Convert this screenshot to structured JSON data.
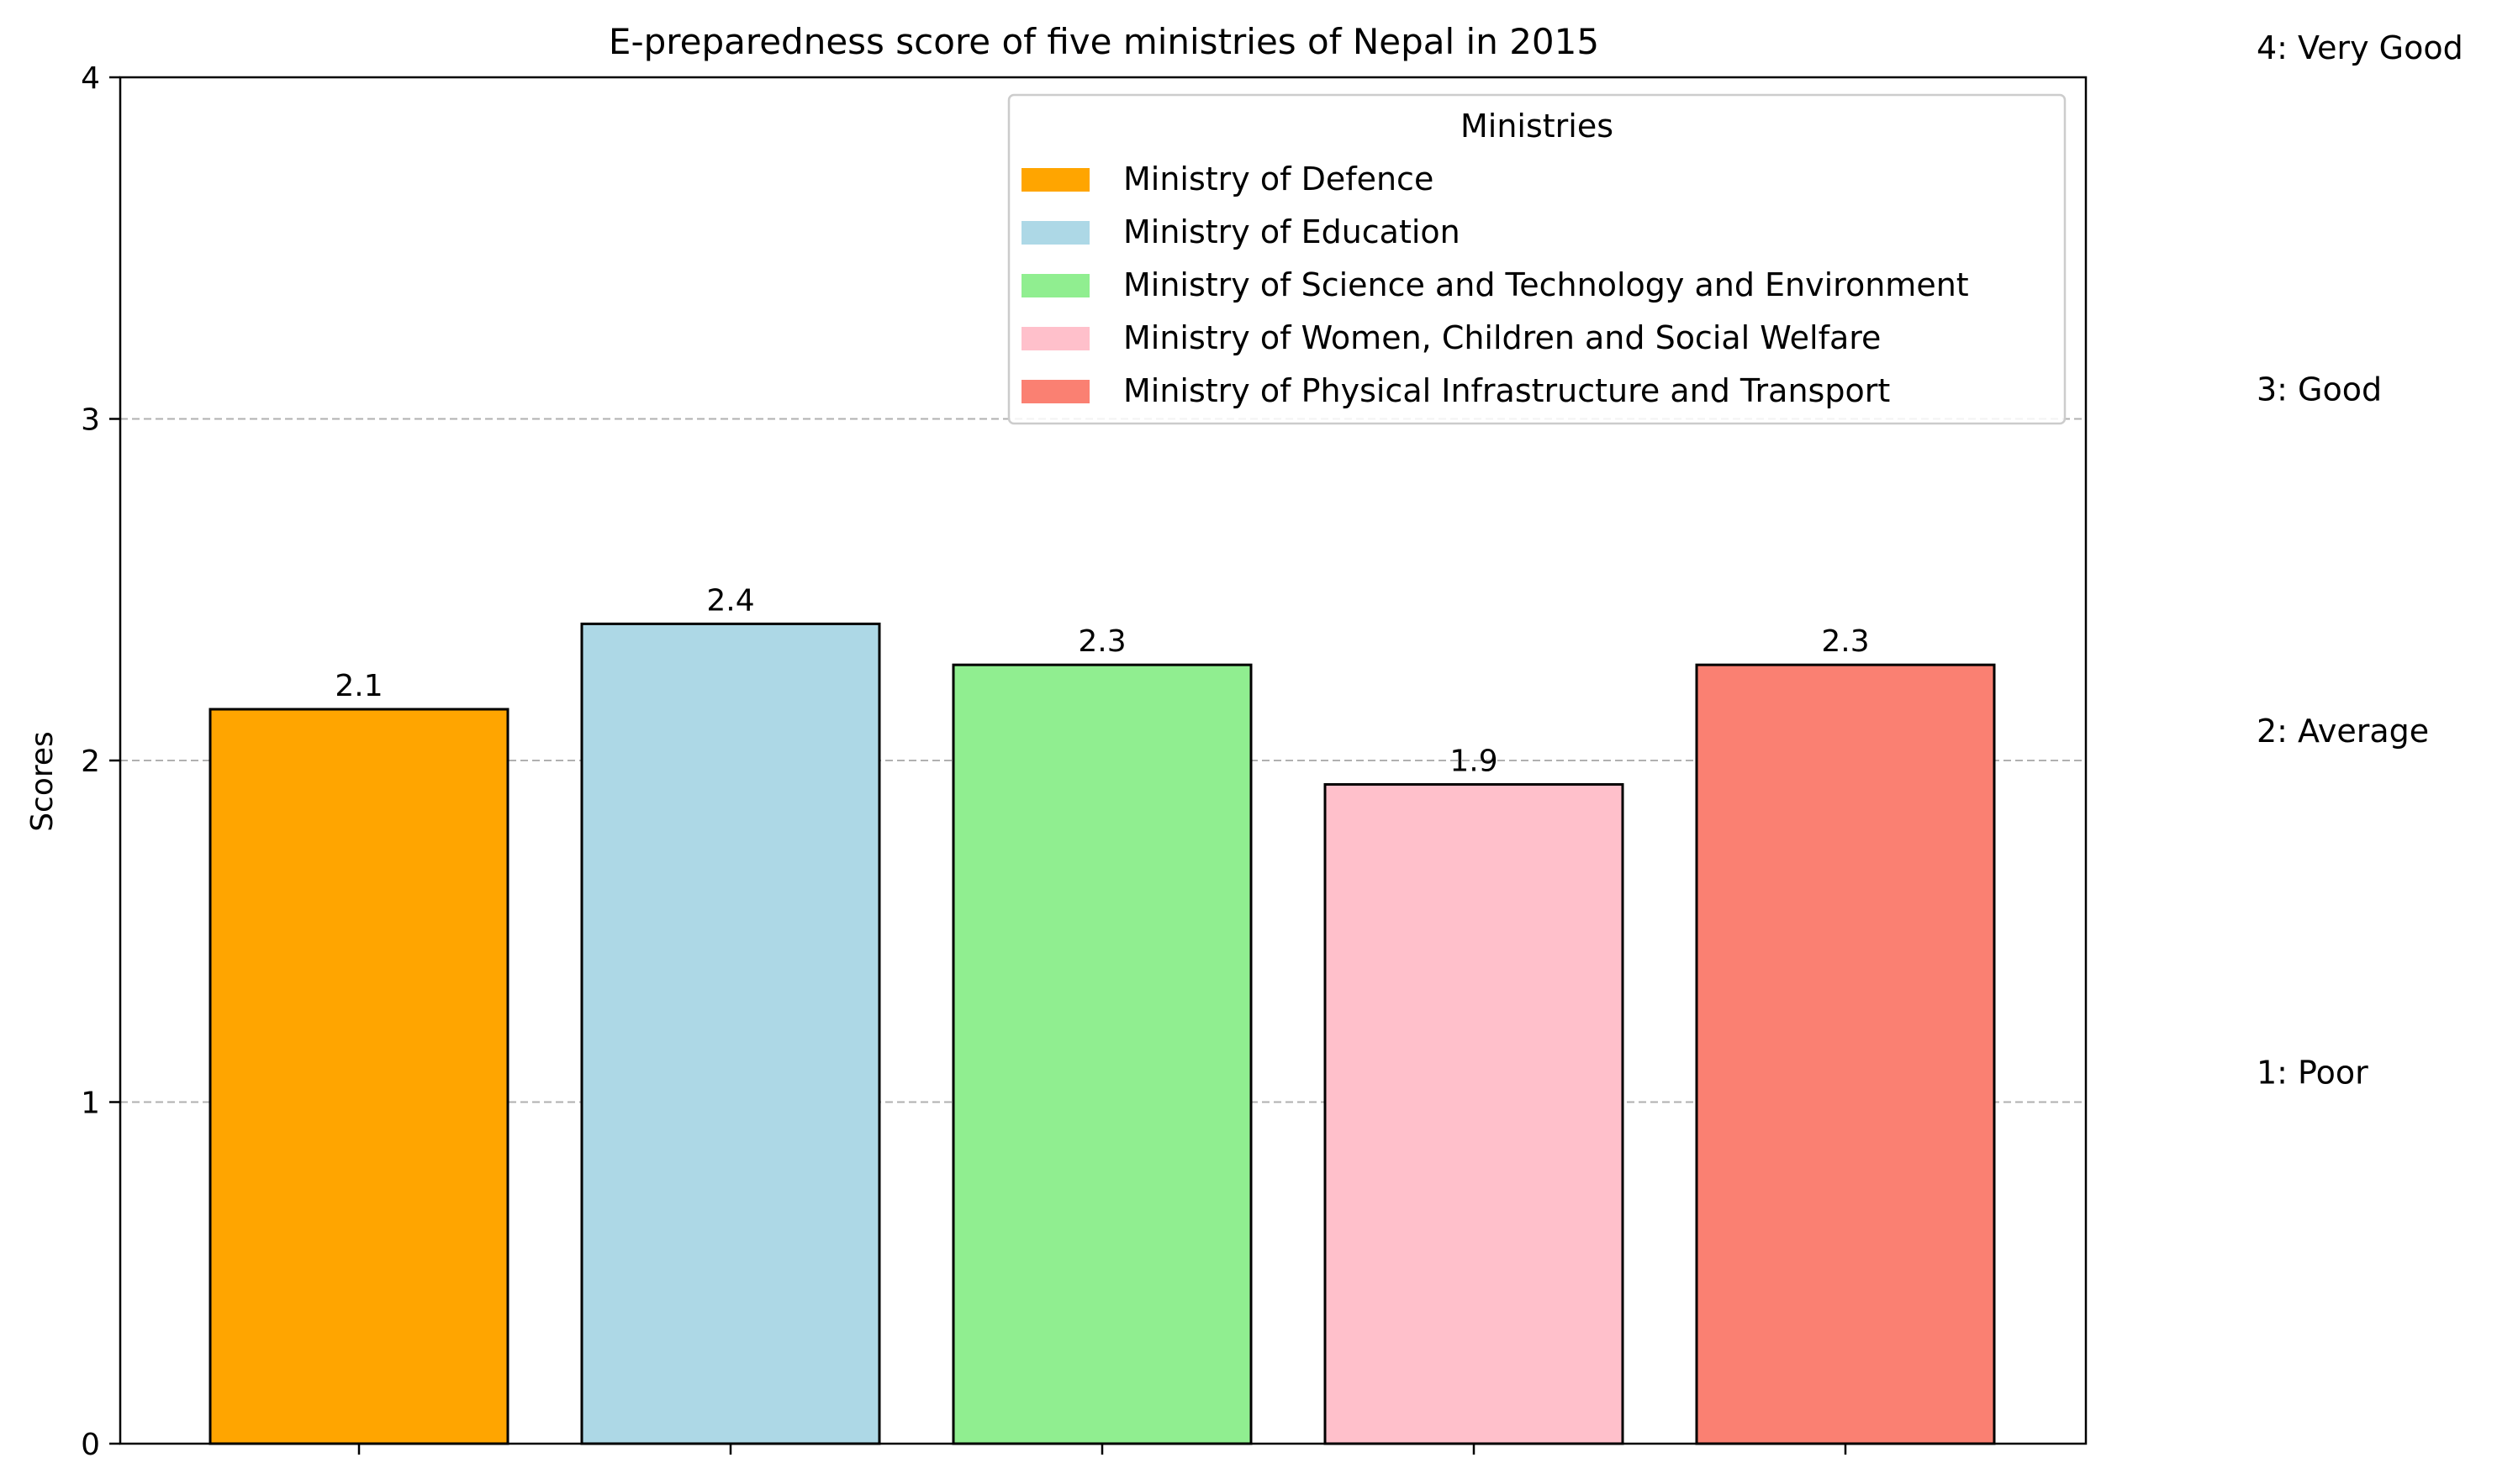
{
  "chart_data": {
    "type": "bar",
    "title": "E-preparedness score of five ministries of Nepal in 2015",
    "xlabel": "",
    "ylabel": "Scores",
    "ylim": [
      0,
      4
    ],
    "yticks": [
      "0",
      "1",
      "2",
      "3",
      "4"
    ],
    "grid": "horizontal dashed at y = 1, 2, 3",
    "categories": [
      "Ministry of Defence",
      "Ministry of Education",
      "Ministry of Science and Technology and Environment",
      "Ministry of Women, Children and Social Welfare",
      "Ministry of Physical Infrastructure and Transport"
    ],
    "values": [
      2.15,
      2.4,
      2.28,
      1.93,
      2.28
    ],
    "data_labels": [
      "2.1",
      "2.4",
      "2.3",
      "1.9",
      "2.3"
    ],
    "colors": [
      "#FFA500",
      "#ADD8E6",
      "#90EE90",
      "#FFC0CB",
      "#FA8072"
    ],
    "legend": {
      "title": "Ministries",
      "placement": "top-right",
      "entries": [
        "Ministry of Defence",
        "Ministry of Education",
        "Ministry of Science and Technology and Environment",
        "Ministry of Women, Children and Social Welfare",
        "Ministry of Physical Infrastructure and Transport"
      ]
    },
    "scale_annotations": [
      {
        "value": 4,
        "label": "4: Very Good"
      },
      {
        "value": 3,
        "label": "3: Good"
      },
      {
        "value": 2,
        "label": "2: Average"
      },
      {
        "value": 1,
        "label": "1: Poor"
      }
    ]
  }
}
